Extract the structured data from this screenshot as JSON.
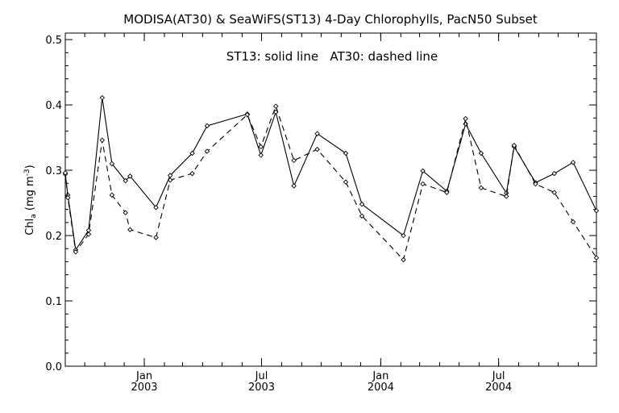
{
  "chart_data": {
    "type": "line",
    "title": "MODISA(AT30) & SeaWiFS(ST13) 4-Day Chlorophylls, PacN50 Subset",
    "annotation": "ST13: solid line   AT30: dashed line",
    "ylabel": "Chl_a (mg m^-3)",
    "ylabel_main": "Chl",
    "ylabel_sub": "a",
    "ylabel_unit": "(mg m",
    "ylabel_sup": "-3",
    "ylabel_close": ")",
    "ylim": [
      0.0,
      0.51
    ],
    "yticks": [
      "0.0",
      "0.1",
      "0.2",
      "0.3",
      "0.4",
      "0.5"
    ],
    "ytick_values": [
      0.0,
      0.1,
      0.2,
      0.3,
      0.4,
      0.5
    ],
    "xlim": [
      "2002-09-01",
      "2004-11-29"
    ],
    "xticks": [
      {
        "date": "2003-01-01",
        "month": "Jan",
        "year": "2003"
      },
      {
        "date": "2003-07-01",
        "month": "Jul",
        "year": "2003"
      },
      {
        "date": "2004-01-01",
        "month": "Jan",
        "year": "2004"
      },
      {
        "date": "2004-07-01",
        "month": "Jul",
        "year": "2004"
      }
    ],
    "series": [
      {
        "name": "ST13",
        "style": "solid",
        "color": "#000000",
        "points": [
          [
            "2002-09-01",
            0.294
          ],
          [
            "2002-09-05",
            0.262
          ],
          [
            "2002-09-17",
            0.178
          ],
          [
            "2002-10-07",
            0.208
          ],
          [
            "2002-10-28",
            0.411
          ],
          [
            "2002-11-12",
            0.31
          ],
          [
            "2002-12-03",
            0.284
          ],
          [
            "2002-12-10",
            0.291
          ],
          [
            "2003-01-19",
            0.243
          ],
          [
            "2003-02-10",
            0.292
          ],
          [
            "2003-03-16",
            0.326
          ],
          [
            "2003-04-08",
            0.368
          ],
          [
            "2003-06-09",
            0.386
          ],
          [
            "2003-06-30",
            0.323
          ],
          [
            "2003-07-23",
            0.389
          ],
          [
            "2003-08-20",
            0.276
          ],
          [
            "2003-09-25",
            0.356
          ],
          [
            "2003-11-08",
            0.326
          ],
          [
            "2003-12-03",
            0.248
          ],
          [
            "2004-02-05",
            0.2
          ],
          [
            "2004-03-06",
            0.299
          ],
          [
            "2004-04-12",
            0.268
          ],
          [
            "2004-05-11",
            0.371
          ],
          [
            "2004-06-04",
            0.326
          ],
          [
            "2004-07-13",
            0.265
          ],
          [
            "2004-07-25",
            0.336
          ],
          [
            "2004-08-27",
            0.281
          ],
          [
            "2004-09-25",
            0.295
          ],
          [
            "2004-10-24",
            0.312
          ],
          [
            "2004-11-29",
            0.238
          ]
        ]
      },
      {
        "name": "AT30",
        "style": "dashed",
        "color": "#000000",
        "points": [
          [
            "2002-09-01",
            0.296
          ],
          [
            "2002-09-05",
            0.258
          ],
          [
            "2002-09-17",
            0.175
          ],
          [
            "2002-10-07",
            0.202
          ],
          [
            "2002-10-28",
            0.346
          ],
          [
            "2002-11-12",
            0.262
          ],
          [
            "2002-12-03",
            0.235
          ],
          [
            "2002-12-10",
            0.209
          ],
          [
            "2003-01-19",
            0.197
          ],
          [
            "2003-02-10",
            0.285
          ],
          [
            "2003-03-16",
            0.295
          ],
          [
            "2003-04-08",
            0.329
          ],
          [
            "2003-06-09",
            0.385
          ],
          [
            "2003-06-30",
            0.336
          ],
          [
            "2003-07-23",
            0.398
          ],
          [
            "2003-08-20",
            0.315
          ],
          [
            "2003-09-25",
            0.332
          ],
          [
            "2003-11-08",
            0.282
          ],
          [
            "2003-12-03",
            0.23
          ],
          [
            "2004-02-05",
            0.163
          ],
          [
            "2004-03-06",
            0.279
          ],
          [
            "2004-04-12",
            0.266
          ],
          [
            "2004-05-11",
            0.379
          ],
          [
            "2004-06-04",
            0.273
          ],
          [
            "2004-07-13",
            0.26
          ],
          [
            "2004-07-25",
            0.338
          ],
          [
            "2004-08-27",
            0.279
          ],
          [
            "2004-09-25",
            0.266
          ],
          [
            "2004-10-24",
            0.221
          ],
          [
            "2004-11-29",
            0.166
          ]
        ]
      }
    ]
  }
}
